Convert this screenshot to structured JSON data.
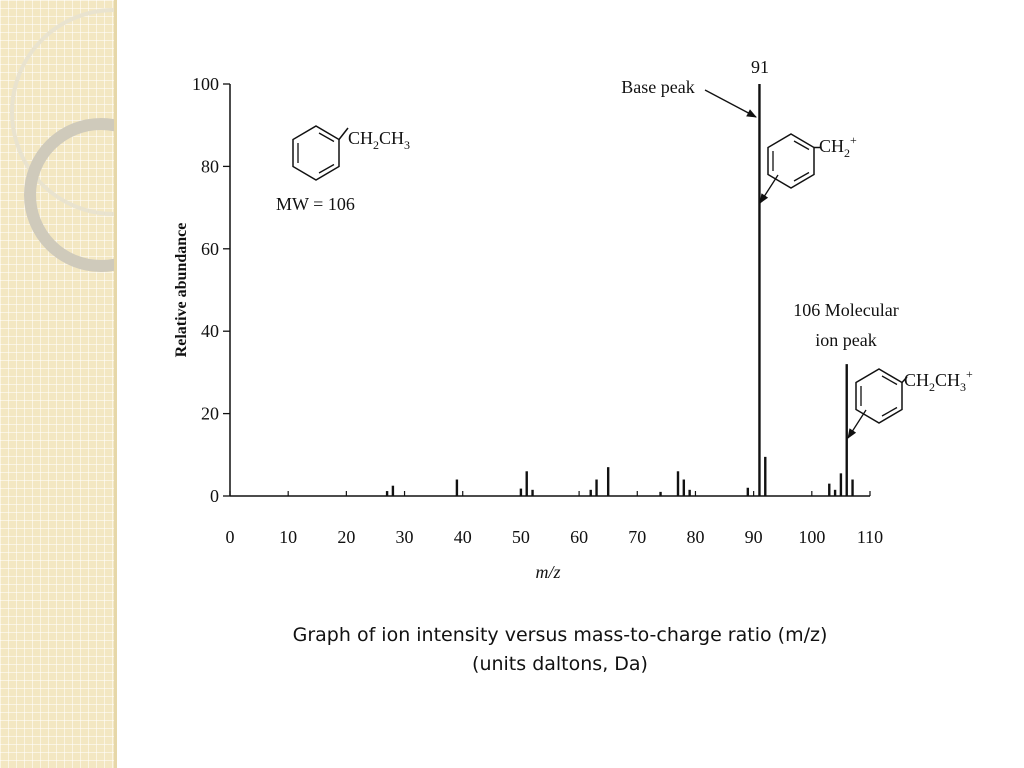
{
  "caption": {
    "line1": "Graph of ion intensity versus mass-to-charge ratio (m/z)",
    "line2": "(units daltons, Da)"
  },
  "colors": {
    "sidebar": "#f3e7c2",
    "ink": "#111111"
  },
  "chart_data": {
    "type": "bar",
    "xlabel": "m/z",
    "ylabel": "Relative abundance",
    "xlim": [
      0,
      110
    ],
    "ylim": [
      0,
      100
    ],
    "x_ticks": [
      0,
      10,
      20,
      30,
      40,
      50,
      60,
      70,
      80,
      90,
      100,
      110
    ],
    "y_ticks": [
      0,
      20,
      40,
      60,
      80,
      100
    ],
    "grid": false,
    "series": [
      {
        "x": [
          27,
          28,
          39,
          50,
          51,
          52,
          62,
          63,
          65,
          74,
          77,
          78,
          79,
          89,
          91,
          92,
          103,
          104,
          105,
          106,
          107
        ],
        "values": [
          1.2,
          2.5,
          4,
          1.8,
          6,
          1.5,
          1.5,
          4,
          7,
          1,
          6,
          4,
          1.5,
          2,
          100,
          9.5,
          3,
          1.5,
          5.5,
          32,
          4
        ]
      }
    ],
    "annotations": {
      "base_peak_value": "91",
      "base_peak_label": "Base peak",
      "molecular_ion_label_line1": "106 Molecular",
      "molecular_ion_label_line2": "ion peak",
      "molecule_formula_main": "CH",
      "molecule_formula_sub1": "2",
      "molecule_formula_mid": "CH",
      "molecule_formula_sub2": "3",
      "molecular_weight": "MW = 106",
      "fragment_formula_main": "CH",
      "fragment_formula_sub": "2",
      "fragment_formula_sup": "+",
      "ion_formula_main": "CH",
      "ion_formula_sub1": "2",
      "ion_formula_mid": "CH",
      "ion_formula_sub2": "3",
      "ion_formula_sup": "+"
    }
  }
}
